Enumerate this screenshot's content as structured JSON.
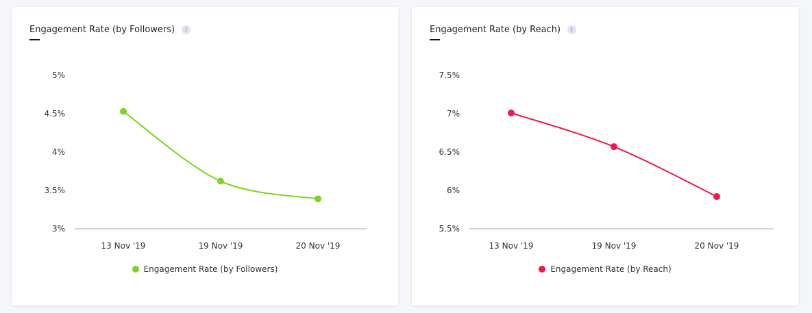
{
  "chart_data": [
    {
      "type": "line",
      "title": "Engagement Rate (by Followers)",
      "categories": [
        "13 Nov '19",
        "19 Nov '19",
        "20 Nov '19"
      ],
      "series": [
        {
          "name": "Engagement Rate (by Followers)",
          "values": [
            4.53,
            3.62,
            3.39
          ],
          "color": "#7ed321"
        }
      ],
      "y_ticks": [
        3,
        3.5,
        4,
        4.5,
        5
      ],
      "y_tick_labels": [
        "3%",
        "3.5%",
        "4%",
        "4.5%",
        "5%"
      ],
      "ylim": [
        3,
        5
      ],
      "xlabel": "",
      "ylabel": "",
      "legend": "bottom-center"
    },
    {
      "type": "line",
      "title": "Engagement Rate (by Reach)",
      "categories": [
        "13 Nov '19",
        "19 Nov '19",
        "20 Nov '19"
      ],
      "series": [
        {
          "name": "Engagement Rate (by Reach)",
          "values": [
            7.01,
            6.57,
            5.92
          ],
          "color": "#f0194a"
        }
      ],
      "y_ticks": [
        5.5,
        6,
        6.5,
        7,
        7.5
      ],
      "y_tick_labels": [
        "5.5%",
        "6%",
        "6.5%",
        "7%",
        "7.5%"
      ],
      "ylim": [
        5.5,
        7.5
      ],
      "xlabel": "",
      "ylabel": "",
      "legend": "bottom-center"
    }
  ],
  "info_icon_glyph": "i",
  "colors": {
    "axis": "#aaaaaa",
    "underline": "#111111"
  }
}
